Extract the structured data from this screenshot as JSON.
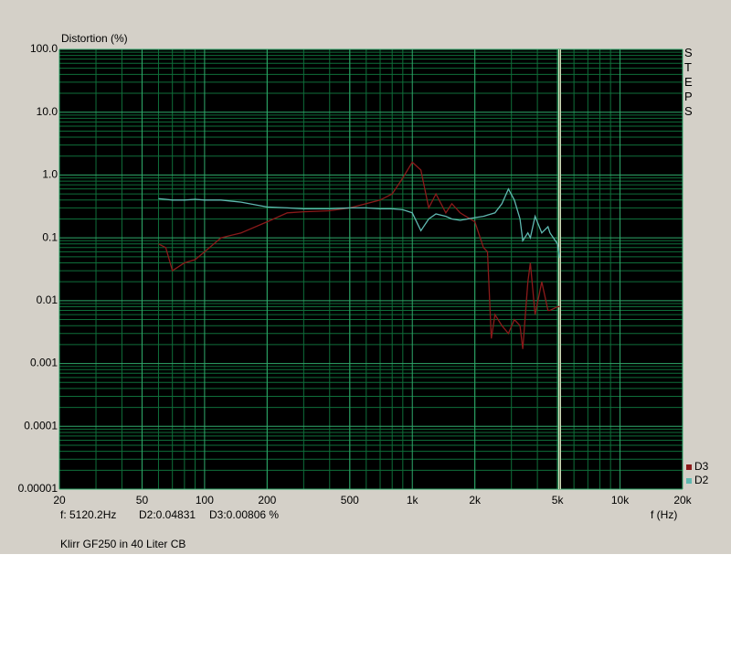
{
  "chart_data": {
    "type": "line",
    "ylabel": "Distortion (%)",
    "xlabel": "f (Hz)",
    "footer": "Klirr GF250 in 40 Liter CB",
    "side_label": "STEPS",
    "log_x": true,
    "log_y": true,
    "grid": true,
    "minor_grid": true,
    "legend": "bottom-right",
    "xlim": [
      20,
      20000
    ],
    "xticks": [
      20,
      50,
      100,
      200,
      500,
      {
        "value": 1000,
        "label": "1k"
      },
      {
        "value": 2000,
        "label": "2k"
      },
      {
        "value": 5000,
        "label": "5k"
      },
      {
        "value": 10000,
        "label": "10k"
      },
      {
        "value": 20000,
        "label": "20k"
      }
    ],
    "ylim": [
      1e-05,
      100
    ],
    "yticks": [
      {
        "value": 100,
        "label": "100.0"
      },
      {
        "value": 10,
        "label": "10.0"
      },
      {
        "value": 1,
        "label": "1.0"
      },
      0.1,
      0.01,
      0.001,
      0.0001,
      1e-05
    ],
    "cursor": {
      "x": 5120.2,
      "label": "f: 5120.2Hz",
      "d2_label": "D2:0.04831",
      "d3_label": "D3:0.00806 %"
    },
    "x": [
      60,
      65,
      70,
      80,
      90,
      100,
      120,
      150,
      200,
      250,
      300,
      400,
      500,
      600,
      700,
      800,
      900,
      1000,
      1100,
      1200,
      1300,
      1450,
      1550,
      1700,
      2000,
      2200,
      2300,
      2400,
      2500,
      2700,
      2900,
      3100,
      3300,
      3400,
      3600,
      3700,
      3900,
      4200,
      4500,
      4600,
      5000,
      5120
    ],
    "series": [
      {
        "name": "D3",
        "color": "#8b1a1a",
        "values": [
          0.08,
          0.07,
          0.03,
          0.04,
          0.045,
          0.06,
          0.1,
          0.12,
          0.18,
          0.25,
          0.26,
          0.27,
          0.3,
          0.35,
          0.4,
          0.5,
          0.9,
          1.6,
          1.2,
          0.3,
          0.5,
          0.25,
          0.35,
          0.25,
          0.18,
          0.07,
          0.06,
          0.0025,
          0.006,
          0.004,
          0.003,
          0.005,
          0.004,
          0.0017,
          0.02,
          0.04,
          0.006,
          0.02,
          0.007,
          0.007,
          0.008,
          0.00806
        ]
      },
      {
        "name": "D2",
        "color": "#5fb8b0",
        "values": [
          0.42,
          0.41,
          0.4,
          0.4,
          0.41,
          0.4,
          0.4,
          0.37,
          0.31,
          0.3,
          0.29,
          0.29,
          0.3,
          0.3,
          0.29,
          0.29,
          0.28,
          0.25,
          0.13,
          0.2,
          0.24,
          0.22,
          0.2,
          0.19,
          0.21,
          0.22,
          0.23,
          0.24,
          0.25,
          0.35,
          0.6,
          0.4,
          0.2,
          0.09,
          0.12,
          0.1,
          0.22,
          0.12,
          0.15,
          0.12,
          0.08,
          0.048
        ]
      }
    ]
  }
}
